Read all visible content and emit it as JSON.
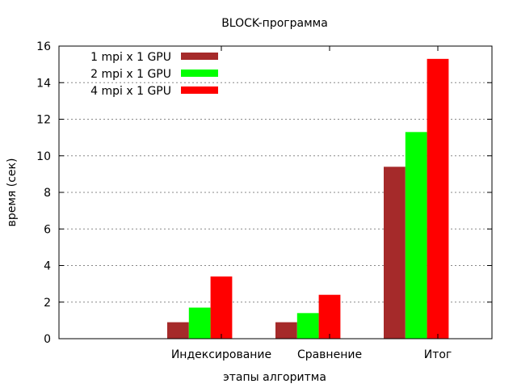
{
  "chart_data": {
    "type": "bar",
    "title": "BLOCK-программа",
    "xlabel": "этапы алгоритма",
    "ylabel": "время (сек)",
    "categories": [
      "Индексирование",
      "Сравнение",
      "Итог"
    ],
    "series": [
      {
        "name": "1 mpi x 1 GPU",
        "color": "#A52A2A",
        "values": [
          0.9,
          0.9,
          9.4
        ]
      },
      {
        "name": "2 mpi x 1 GPU",
        "color": "#00FF00",
        "values": [
          1.7,
          1.4,
          11.3
        ]
      },
      {
        "name": "4 mpi x 1 GPU",
        "color": "#FF0000",
        "values": [
          3.4,
          2.4,
          15.3
        ]
      }
    ],
    "ylim": [
      0,
      16
    ],
    "yticks": [
      0,
      2,
      4,
      6,
      8,
      10,
      12,
      14,
      16
    ],
    "grid": true,
    "legend_position": "top-left"
  }
}
